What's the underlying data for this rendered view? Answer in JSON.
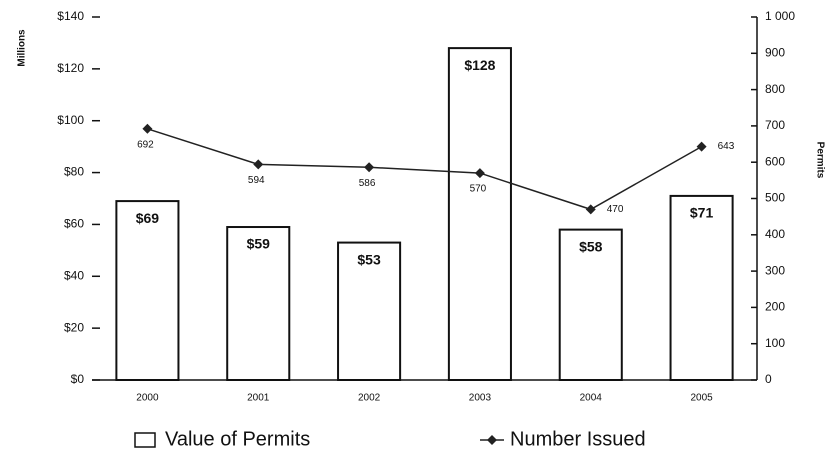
{
  "chart_data": {
    "type": "bar",
    "categories": [
      "2000",
      "2001",
      "2002",
      "2003",
      "2004",
      "2005"
    ],
    "series": [
      {
        "name": "Value of Permits",
        "type": "bar",
        "color": "#ffffff",
        "values": [
          69,
          59,
          53,
          128,
          58,
          71
        ],
        "value_labels": [
          "$69",
          "$59",
          "$53",
          "$128",
          "$58",
          "$71"
        ]
      },
      {
        "name": "Number Issued",
        "type": "line",
        "axis": "y2",
        "color": "#222222",
        "values": [
          692,
          594,
          586,
          570,
          470,
          643
        ]
      }
    ],
    "ylabel": "Millions",
    "y2label": "Permits",
    "ylim": [
      0,
      140
    ],
    "yticks": [
      {
        "value": 0,
        "label": "$0"
      },
      {
        "value": 20,
        "label": "$20"
      },
      {
        "value": 40,
        "label": "$40"
      },
      {
        "value": 60,
        "label": "$60"
      },
      {
        "value": 80,
        "label": "$80"
      },
      {
        "value": 100,
        "label": "$100"
      },
      {
        "value": 120,
        "label": "$120"
      },
      {
        "value": 140,
        "label": "$140"
      }
    ],
    "y2lim": [
      0,
      1000
    ],
    "y2ticks": [
      0,
      100,
      200,
      300,
      400,
      500,
      600,
      700,
      800,
      900,
      {
        "value": 1000,
        "label": "1 000"
      }
    ],
    "grid": false,
    "legend": "bottom"
  }
}
